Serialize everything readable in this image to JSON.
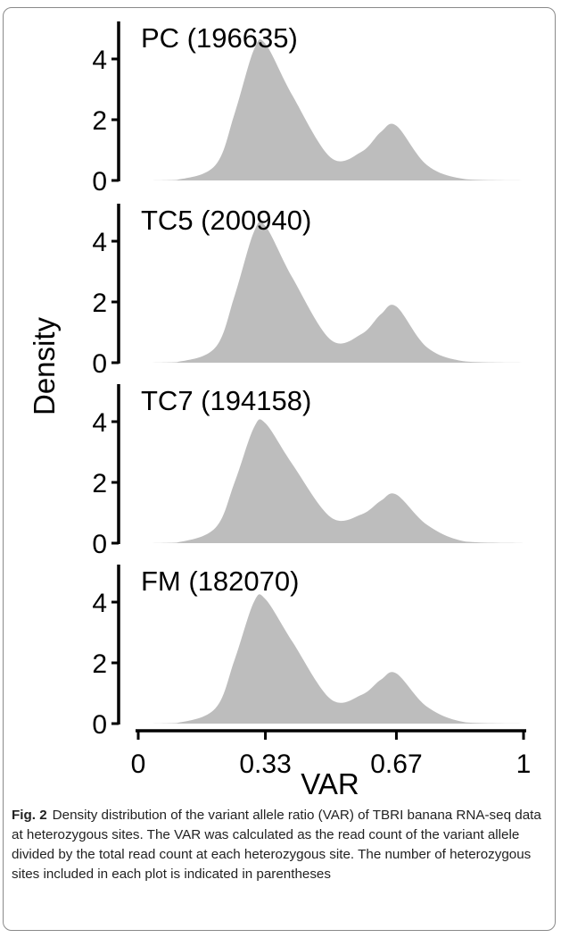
{
  "chart_data": {
    "type": "area",
    "xlabel": "VAR",
    "ylabel": "Density",
    "xlim": [
      -0.05,
      1.0
    ],
    "ylim": [
      0,
      5.0
    ],
    "x_ticks": [
      0,
      0.33,
      0.67,
      1
    ],
    "x_tick_labels": [
      "0",
      "0.33",
      "0.67",
      "1"
    ],
    "y_ticks": [
      0,
      2,
      4
    ],
    "y_tick_labels": [
      "0",
      "2",
      "4"
    ],
    "fill_color": "#bdbdbd",
    "panels": [
      {
        "name": "PC (196635)",
        "x": [
          0,
          0.1,
          0.2,
          0.25,
          0.3,
          0.33,
          0.4,
          0.5,
          0.58,
          0.63,
          0.67,
          0.75,
          0.85,
          1.0
        ],
        "y": [
          0,
          0.02,
          0.5,
          2.2,
          4.3,
          4.5,
          2.8,
          0.75,
          0.95,
          1.6,
          1.8,
          0.5,
          0.04,
          0
        ]
      },
      {
        "name": "TC5 (200940)",
        "x": [
          0,
          0.1,
          0.2,
          0.25,
          0.3,
          0.33,
          0.4,
          0.5,
          0.58,
          0.63,
          0.67,
          0.75,
          0.85,
          1.0
        ],
        "y": [
          0,
          0.02,
          0.5,
          2.2,
          4.3,
          4.5,
          2.8,
          0.75,
          0.95,
          1.6,
          1.85,
          0.5,
          0.04,
          0
        ]
      },
      {
        "name": "TC7 (194158)",
        "x": [
          0,
          0.1,
          0.2,
          0.25,
          0.3,
          0.33,
          0.4,
          0.5,
          0.58,
          0.63,
          0.67,
          0.75,
          0.85,
          1.0
        ],
        "y": [
          0,
          0.02,
          0.5,
          2.0,
          3.8,
          3.95,
          2.6,
          0.85,
          0.95,
          1.4,
          1.6,
          0.6,
          0.05,
          0
        ]
      },
      {
        "name": "FM (182070)",
        "x": [
          0,
          0.1,
          0.2,
          0.25,
          0.3,
          0.33,
          0.4,
          0.5,
          0.58,
          0.63,
          0.67,
          0.75,
          0.85,
          1.0
        ],
        "y": [
          0,
          0.02,
          0.5,
          2.1,
          4.0,
          4.1,
          2.7,
          0.8,
          0.95,
          1.45,
          1.65,
          0.55,
          0.04,
          0
        ]
      }
    ]
  },
  "caption": {
    "label": "Fig. 2",
    "text": "Density distribution of the variant allele ratio (VAR) of TBRI banana RNA-seq data at heterozygous sites. The VAR was calculated as the read count of the variant allele divided by the total read count at each heterozygous site. The number of heterozygous sites included in each plot is indicated in parentheses"
  }
}
